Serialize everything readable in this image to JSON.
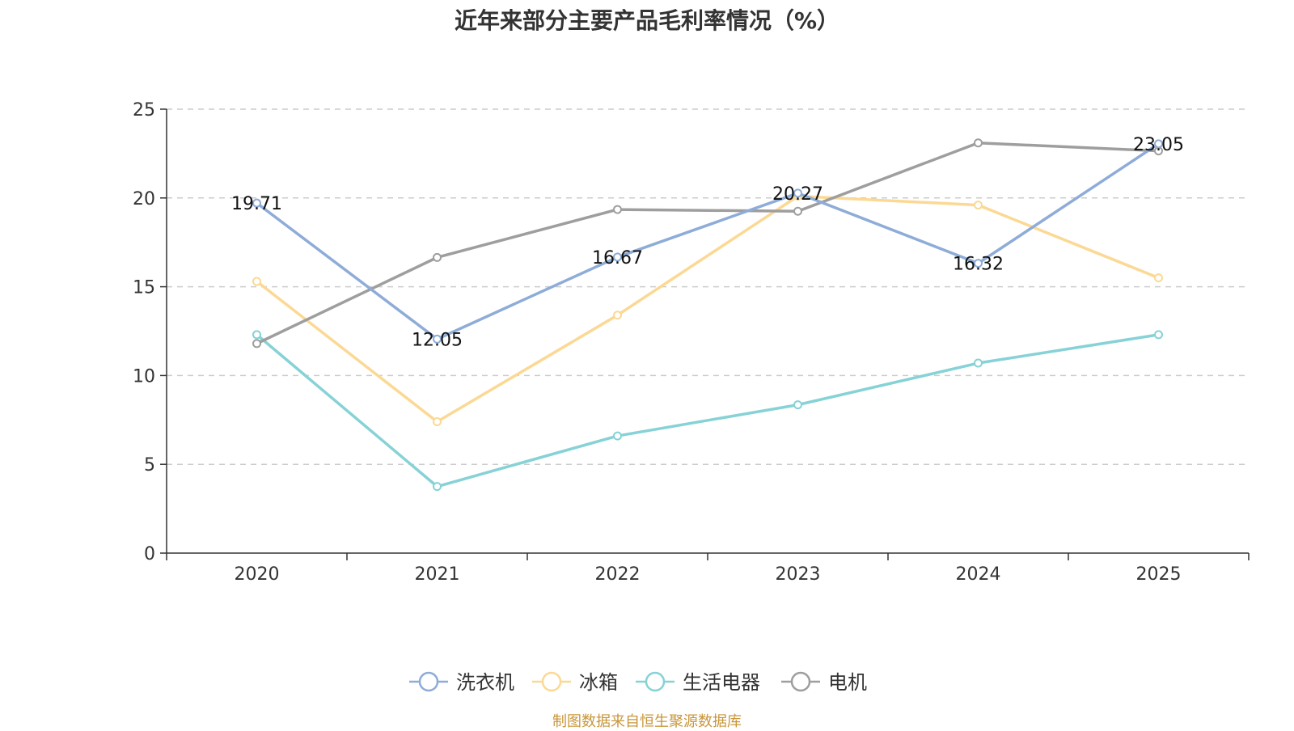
{
  "chart_data": {
    "type": "line",
    "title": "近年来部分主要产品毛利率情况（%）",
    "categories": [
      "2020",
      "2021",
      "2022",
      "2023",
      "2024",
      "2025"
    ],
    "ylim": [
      0,
      25
    ],
    "yticks": [
      0,
      5,
      10,
      15,
      20,
      25
    ],
    "grid": true,
    "legend_position": "bottom",
    "series": [
      {
        "name": "洗衣机",
        "color": "#8eacd8",
        "values": [
          19.71,
          12.05,
          16.67,
          20.27,
          16.32,
          23.05
        ],
        "labels": [
          "19.71",
          "12.05",
          "16.67",
          "20.27",
          "16.32",
          "23.05"
        ]
      },
      {
        "name": "冰箱",
        "color": "#fbd994",
        "values": [
          15.3,
          7.4,
          13.4,
          20.1,
          19.6,
          15.5
        ]
      },
      {
        "name": "生活电器",
        "color": "#86d2d6",
        "values": [
          12.3,
          3.75,
          6.6,
          8.35,
          10.7,
          12.3
        ]
      },
      {
        "name": "电机",
        "color": "#9e9e9e",
        "values": [
          11.8,
          16.65,
          19.35,
          19.25,
          23.1,
          22.65
        ]
      }
    ]
  },
  "footer": {
    "source": "制图数据来自恒生聚源数据库"
  }
}
